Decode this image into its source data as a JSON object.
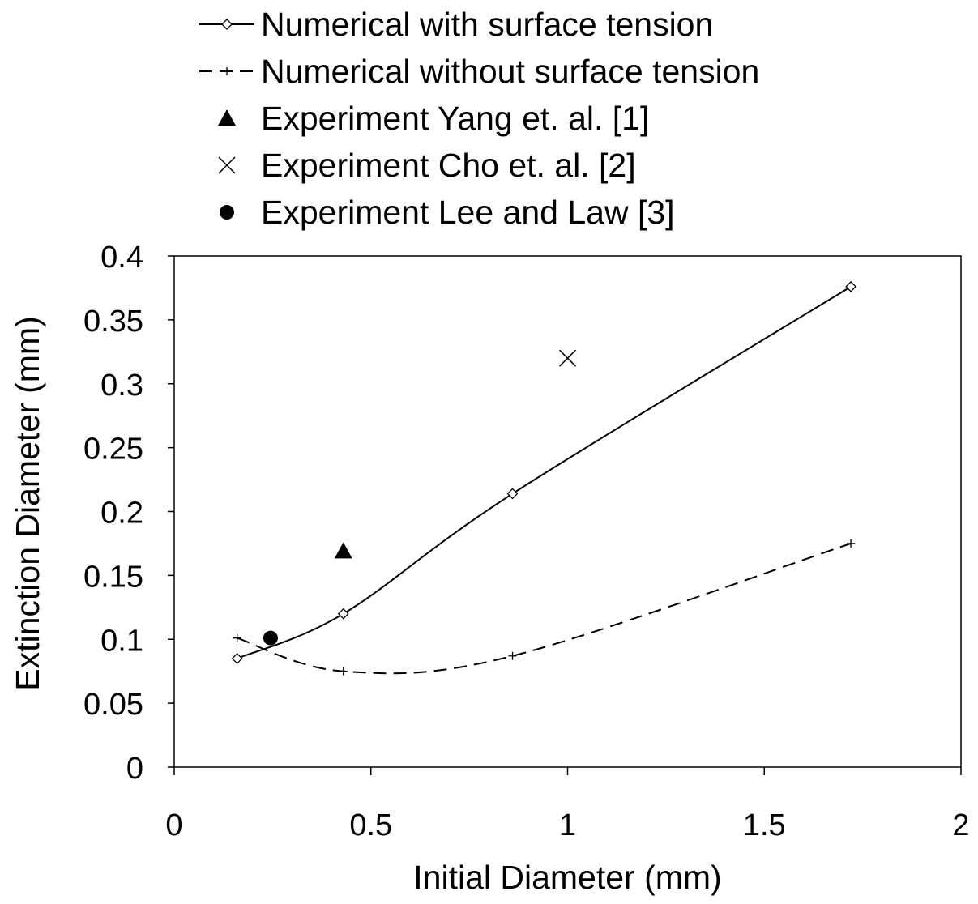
{
  "chart_data": {
    "type": "scatter",
    "xlabel": "Initial Diameter (mm)",
    "ylabel": "Extinction Diameter (mm)",
    "xlim": [
      0,
      2
    ],
    "ylim": [
      0,
      0.4
    ],
    "x_ticks": [
      "0",
      "0.5",
      "1",
      "1.5",
      "2"
    ],
    "y_ticks": [
      "0",
      "0.05",
      "0.1",
      "0.15",
      "0.2",
      "0.25",
      "0.3",
      "0.35",
      "0.4"
    ],
    "x_tick_values": [
      0,
      0.5,
      1,
      1.5,
      2
    ],
    "y_tick_values": [
      0,
      0.05,
      0.1,
      0.15,
      0.2,
      0.25,
      0.3,
      0.35,
      0.4
    ],
    "grid": false,
    "legend_position": "top",
    "series": [
      {
        "name": "Numerical with surface tension",
        "kind": "line",
        "line_style": "solid",
        "marker": "diamond",
        "x": [
          0.16,
          0.43,
          0.86,
          1.72
        ],
        "y": [
          0.085,
          0.12,
          0.214,
          0.376
        ]
      },
      {
        "name": "Numerical without surface tension",
        "kind": "line",
        "line_style": "dashed",
        "marker": "plus",
        "x": [
          0.16,
          0.43,
          0.86,
          1.72
        ],
        "y": [
          0.101,
          0.075,
          0.087,
          0.175
        ]
      },
      {
        "name": "Experiment Yang et. al. [1]",
        "kind": "scatter",
        "marker": "triangle",
        "x": [
          0.43
        ],
        "y": [
          0.169
        ]
      },
      {
        "name": "Experiment Cho et. al. [2]",
        "kind": "scatter",
        "marker": "x",
        "x": [
          1.0
        ],
        "y": [
          0.32
        ]
      },
      {
        "name": "Experiment Lee and Law [3]",
        "kind": "scatter",
        "marker": "circle",
        "x": [
          0.245
        ],
        "y": [
          0.101
        ]
      }
    ]
  }
}
